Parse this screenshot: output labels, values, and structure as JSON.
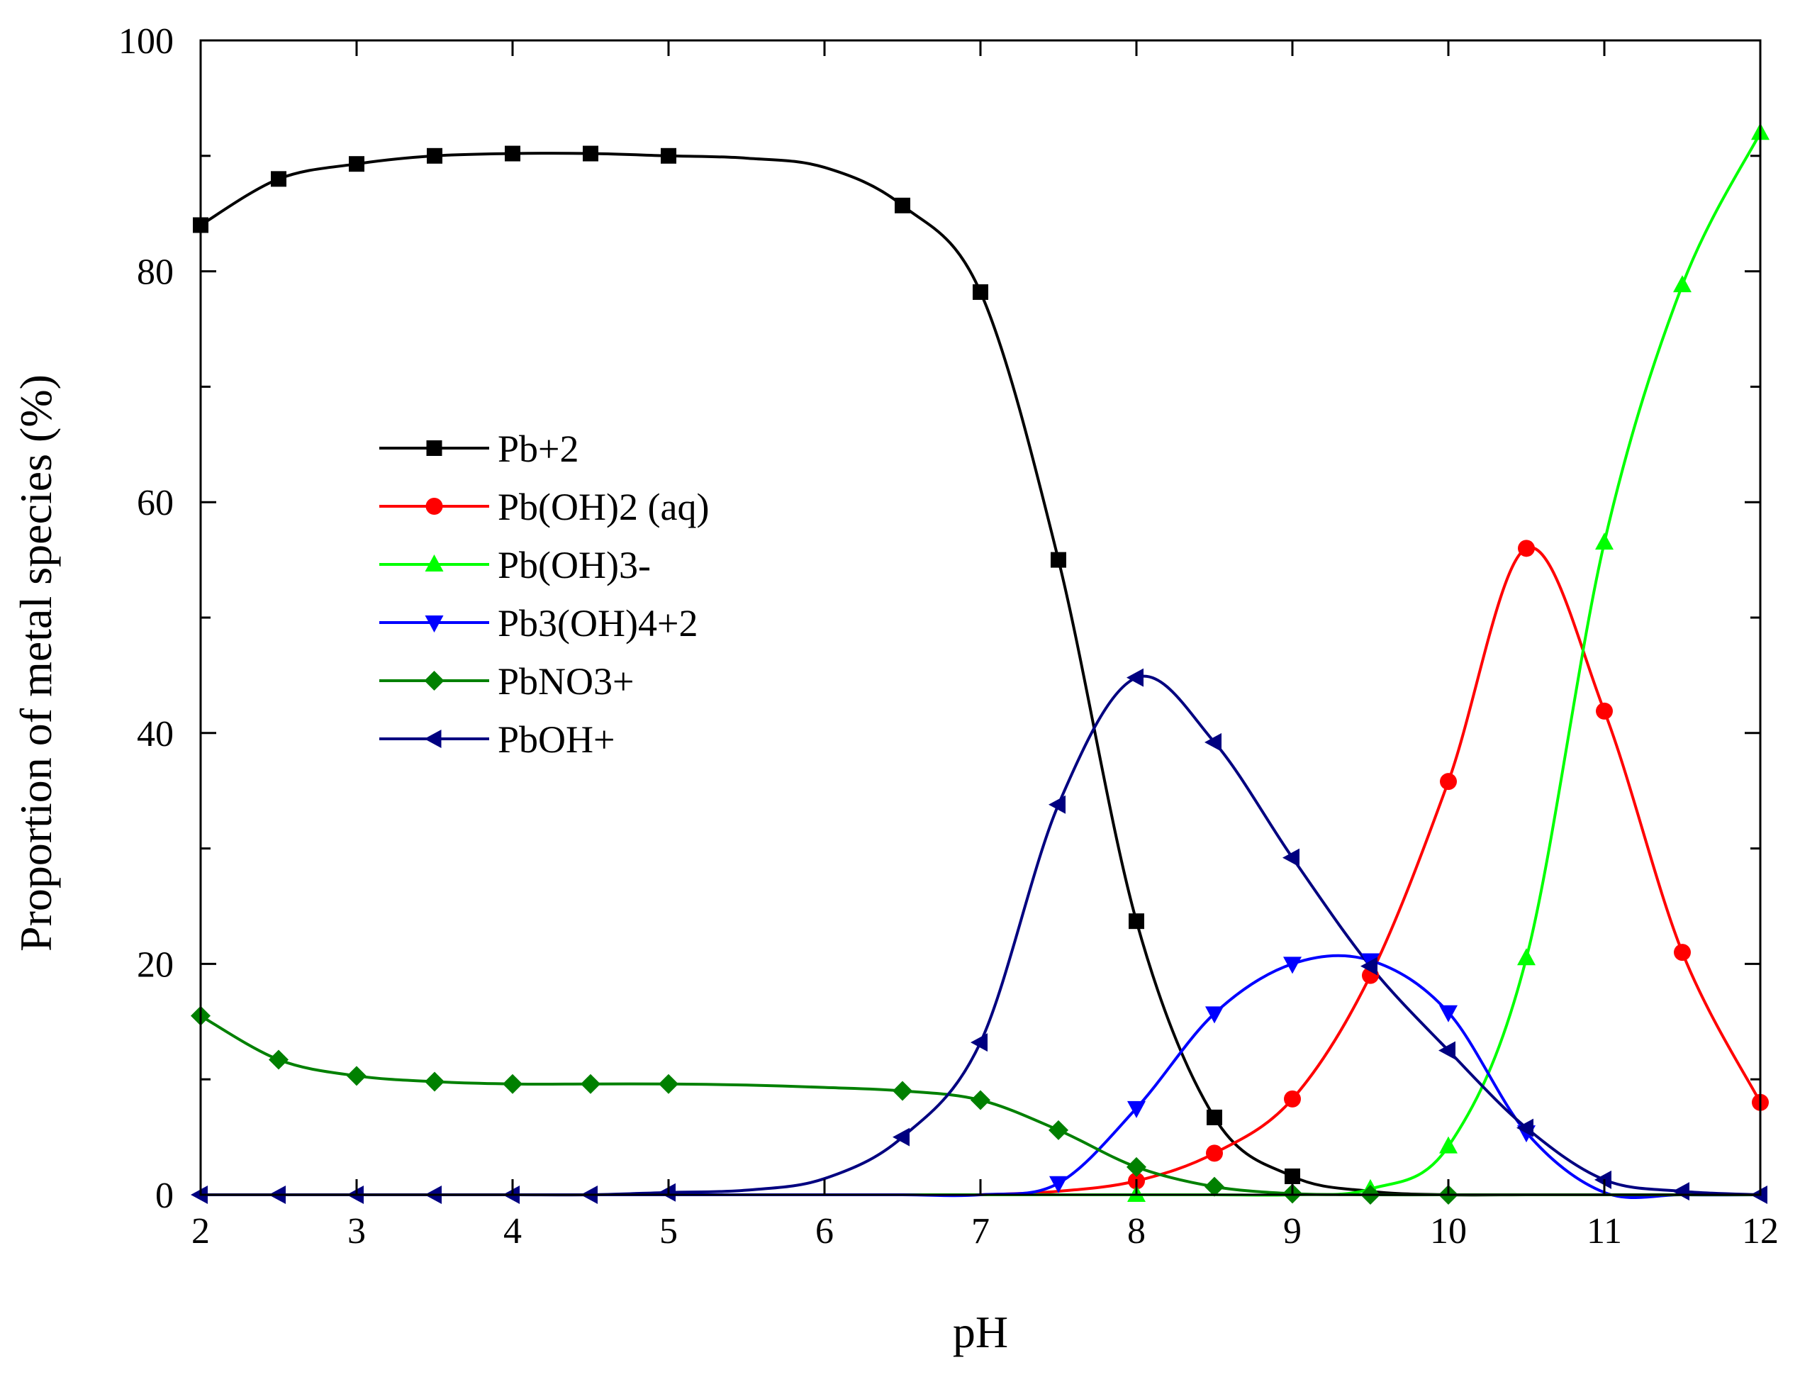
{
  "chart_data": {
    "type": "line",
    "title": "",
    "xlabel": "pH",
    "ylabel": "Proportion of metal species (%)",
    "xlim": [
      2,
      12
    ],
    "ylim": [
      0,
      100
    ],
    "xticks": [
      2,
      3,
      4,
      5,
      6,
      7,
      8,
      9,
      10,
      11,
      12
    ],
    "yticks": [
      0,
      20,
      40,
      60,
      80,
      100
    ],
    "yminor": [
      10,
      30,
      50,
      70,
      90
    ],
    "grid": false,
    "legend_position": "center-left",
    "series": [
      {
        "name": "Pb+2",
        "color": "#000000",
        "marker": "square",
        "x": [
          2,
          2.5,
          3,
          3.5,
          4,
          4.5,
          5,
          5.5,
          6,
          6.5,
          7,
          7.5,
          8,
          8.5,
          9,
          9.5,
          10,
          10.5,
          11,
          11.5,
          12
        ],
        "y": [
          84,
          88,
          89.3,
          90,
          90.2,
          90.2,
          90,
          89.8,
          89,
          85.7,
          78.2,
          55,
          23.7,
          6.7,
          1.6,
          0.3,
          0,
          0,
          0,
          0,
          0
        ],
        "markers_at": [
          2,
          2.5,
          3,
          3.5,
          4,
          4.5,
          5,
          6.5,
          7,
          7.5,
          8,
          8.5,
          9
        ]
      },
      {
        "name": "Pb(OH)2 (aq)",
        "color": "#ff0000",
        "marker": "circle",
        "x": [
          7,
          7.5,
          8,
          8.5,
          9,
          9.5,
          10,
          10.5,
          11,
          11.5,
          12
        ],
        "y": [
          0,
          0.3,
          1.2,
          3.6,
          8.3,
          19,
          35.8,
          56,
          41.9,
          21,
          8
        ],
        "markers_at": [
          8,
          8.5,
          9,
          9.5,
          10,
          10.5,
          11,
          11.5,
          12
        ]
      },
      {
        "name": "Pb(OH)3-",
        "color": "#00ff00",
        "marker": "triangle-up",
        "x": [
          2,
          2.5,
          3,
          3.5,
          4,
          4.5,
          5,
          5.5,
          6,
          6.5,
          7,
          7.5,
          8,
          8.5,
          9,
          9.5,
          10,
          10.5,
          11,
          11.5,
          12
        ],
        "y": [
          0,
          0,
          0,
          0,
          0,
          0,
          0,
          0,
          0,
          0,
          0,
          0,
          0,
          0,
          0,
          0.5,
          4.2,
          20.5,
          56.5,
          78.8,
          92
        ],
        "markers_at": [
          8,
          9.5,
          10,
          10.5,
          11,
          11.5,
          12
        ]
      },
      {
        "name": "Pb3(OH)4+2",
        "color": "#0000ff",
        "marker": "triangle-down",
        "x": [
          2,
          2.5,
          3,
          3.5,
          4,
          4.5,
          5,
          5.5,
          6,
          6.5,
          7,
          7.5,
          8,
          8.5,
          9,
          9.5,
          10,
          10.5,
          11,
          11.5,
          12
        ],
        "y": [
          0,
          0,
          0,
          0,
          0,
          0,
          0,
          0,
          0,
          0,
          0,
          1,
          7.5,
          15.7,
          20,
          20.3,
          15.8,
          5.4,
          0.2,
          0,
          0
        ],
        "markers_at": [
          7.5,
          8,
          8.5,
          9,
          9.5,
          10,
          10.5
        ]
      },
      {
        "name": "PbNO3+",
        "color": "#008000",
        "marker": "diamond",
        "x": [
          2,
          2.5,
          3,
          3.5,
          4,
          4.5,
          5,
          5.5,
          6,
          6.5,
          7,
          7.5,
          8,
          8.5,
          9,
          9.5,
          10,
          10.5,
          11,
          11.5,
          12
        ],
        "y": [
          15.5,
          11.7,
          10.3,
          9.8,
          9.6,
          9.6,
          9.6,
          9.5,
          9.3,
          9,
          8.2,
          5.6,
          2.4,
          0.7,
          0.1,
          0,
          0,
          0,
          0,
          0,
          0
        ],
        "markers_at": [
          2,
          2.5,
          3,
          3.5,
          4,
          4.5,
          5,
          6.5,
          7,
          7.5,
          8,
          8.5,
          9,
          9.5,
          10
        ]
      },
      {
        "name": "PbOH+",
        "color": "#000080",
        "marker": "triangle-left",
        "x": [
          2,
          2.5,
          3,
          3.5,
          4,
          4.5,
          5,
          5.5,
          6,
          6.5,
          7,
          7.5,
          8,
          8.5,
          9,
          9.5,
          10,
          10.5,
          11,
          11.5,
          12
        ],
        "y": [
          0,
          0,
          0,
          0,
          0,
          0,
          0.2,
          0.4,
          1.4,
          5,
          13.2,
          33.8,
          44.8,
          39.2,
          29.2,
          19.8,
          12.5,
          5.8,
          1.3,
          0.3,
          0
        ],
        "markers_at": [
          2,
          2.5,
          3,
          3.5,
          4,
          4.5,
          5,
          6.5,
          7,
          7.5,
          8,
          8.5,
          9,
          9.5,
          10,
          10.5,
          11,
          11.5,
          12
        ]
      }
    ]
  }
}
